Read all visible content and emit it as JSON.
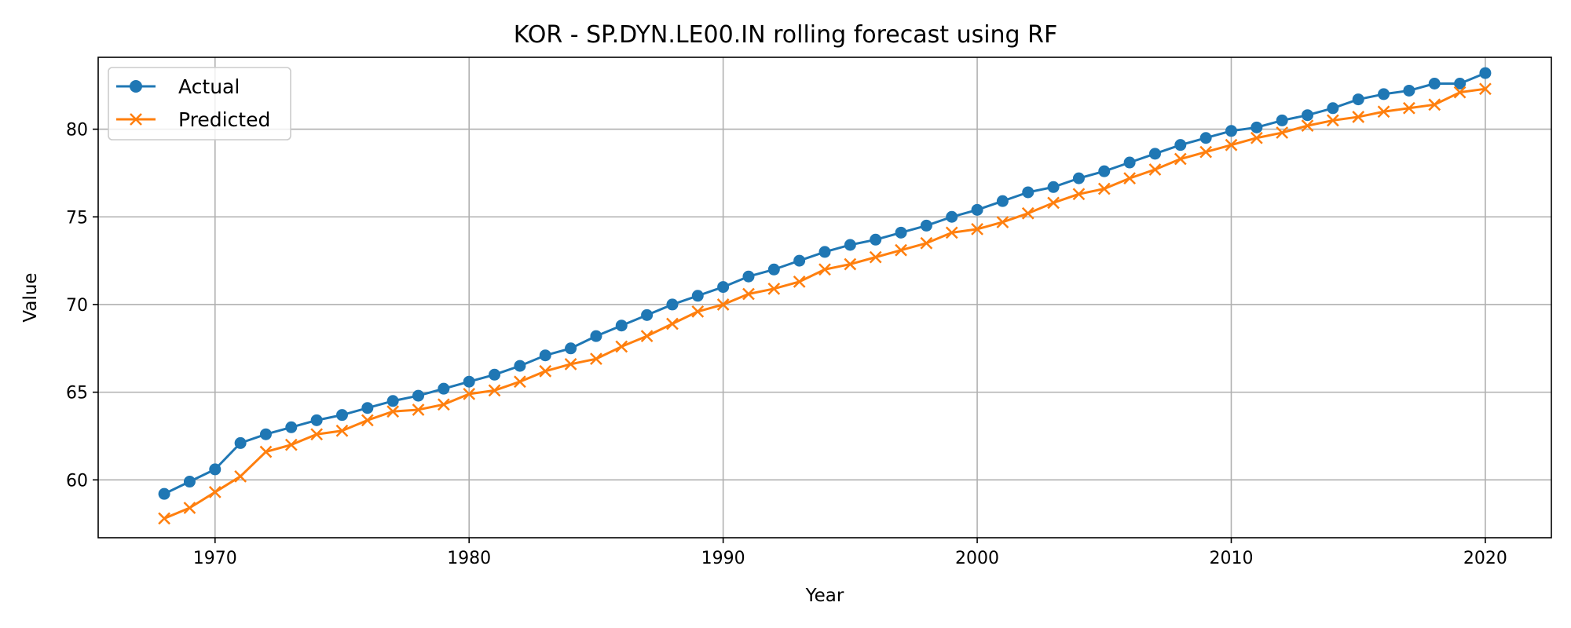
{
  "chart_data": {
    "type": "line",
    "title": "KOR - SP.DYN.LE00.IN rolling forecast using RF",
    "xlabel": "Year",
    "ylabel": "Value",
    "xlim": [
      1965.4,
      2022.6
    ],
    "ylim": [
      56.7,
      84.1
    ],
    "xticks": [
      1970,
      1980,
      1990,
      2000,
      2010,
      2020
    ],
    "yticks": [
      60,
      65,
      70,
      75,
      80
    ],
    "grid": true,
    "legend_position": "top-left",
    "x": [
      1968,
      1969,
      1970,
      1971,
      1972,
      1973,
      1974,
      1975,
      1976,
      1977,
      1978,
      1979,
      1980,
      1981,
      1982,
      1983,
      1984,
      1985,
      1986,
      1987,
      1988,
      1989,
      1990,
      1991,
      1992,
      1993,
      1994,
      1995,
      1996,
      1997,
      1998,
      1999,
      2000,
      2001,
      2002,
      2003,
      2004,
      2005,
      2006,
      2007,
      2008,
      2009,
      2010,
      2011,
      2012,
      2013,
      2014,
      2015,
      2016,
      2017,
      2018,
      2019,
      2020
    ],
    "series": [
      {
        "name": "Actual",
        "color": "#1f77b4",
        "marker": "circle",
        "values": [
          59.2,
          59.9,
          60.6,
          62.1,
          62.6,
          63.0,
          63.4,
          63.7,
          64.1,
          64.5,
          64.8,
          65.2,
          65.6,
          66.0,
          66.5,
          67.1,
          67.5,
          68.2,
          68.8,
          69.4,
          70.0,
          70.5,
          71.0,
          71.6,
          72.0,
          72.5,
          73.0,
          73.4,
          73.7,
          74.1,
          74.5,
          75.0,
          75.4,
          75.9,
          76.4,
          76.7,
          77.2,
          77.6,
          78.1,
          78.6,
          79.1,
          79.5,
          79.9,
          80.1,
          80.5,
          80.8,
          81.2,
          81.7,
          82.0,
          82.2,
          82.6,
          82.6,
          83.2
        ]
      },
      {
        "name": "Predicted",
        "color": "#ff7f0e",
        "marker": "x",
        "values": [
          57.8,
          58.4,
          59.3,
          60.2,
          61.6,
          62.0,
          62.6,
          62.8,
          63.4,
          63.9,
          64.0,
          64.3,
          64.9,
          65.1,
          65.6,
          66.2,
          66.6,
          66.9,
          67.6,
          68.2,
          68.9,
          69.6,
          70.0,
          70.6,
          70.9,
          71.3,
          72.0,
          72.3,
          72.7,
          73.1,
          73.5,
          74.1,
          74.3,
          74.7,
          75.2,
          75.8,
          76.3,
          76.6,
          77.2,
          77.7,
          78.3,
          78.7,
          79.1,
          79.5,
          79.8,
          80.2,
          80.5,
          80.7,
          81.0,
          81.2,
          81.4,
          82.1,
          82.3
        ]
      }
    ]
  }
}
